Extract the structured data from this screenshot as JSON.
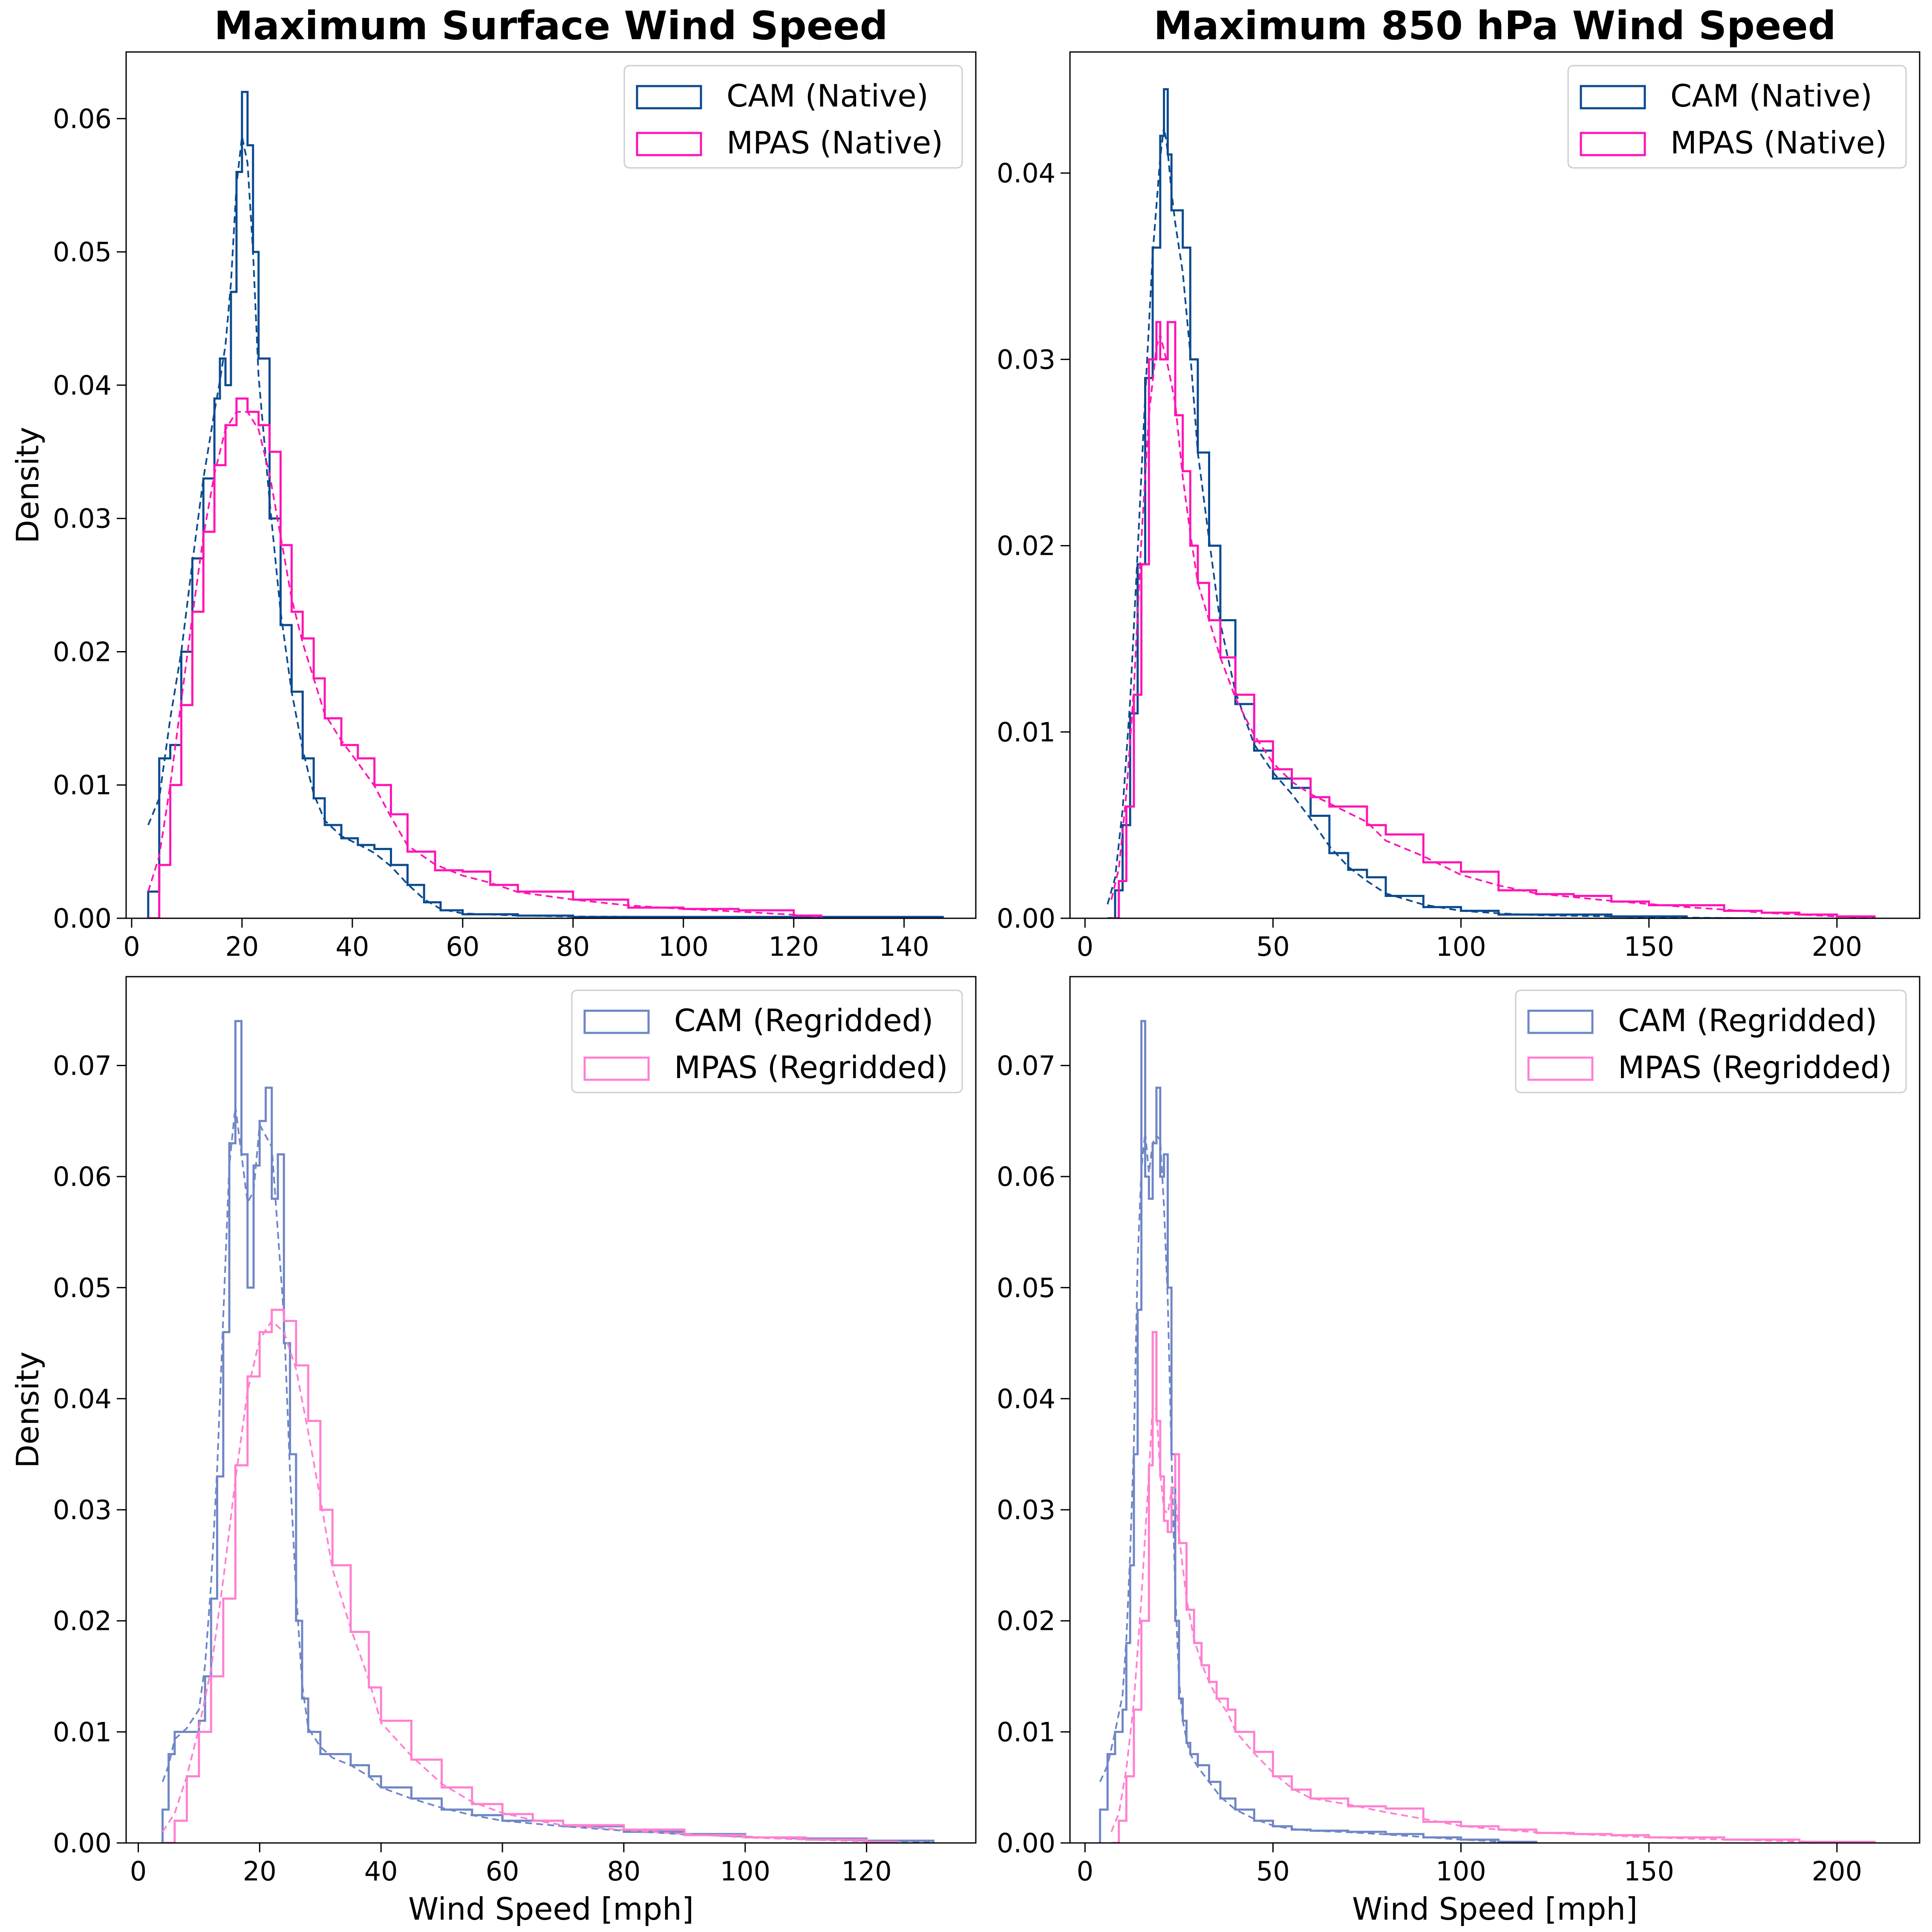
{
  "figure": {
    "panels": [
      {
        "title": "Maximum Surface Wind Speed",
        "ylabel": "Density",
        "xlabel": ""
      },
      {
        "title": "Maximum 850 hPa Wind Speed",
        "ylabel": "",
        "xlabel": ""
      },
      {
        "title": "",
        "ylabel": "Density",
        "xlabel": "Wind Speed [mph]"
      },
      {
        "title": "",
        "ylabel": "",
        "xlabel": "Wind Speed [mph]"
      }
    ]
  },
  "chart_data": [
    {
      "type": "area",
      "chart_kind": "step histogram with dashed KDE overlay",
      "title": "Maximum Surface Wind Speed",
      "xlabel": "",
      "ylabel": "Density",
      "xlim": [
        -1,
        153
      ],
      "ylim": [
        0,
        0.065
      ],
      "xticks": [
        0,
        20,
        40,
        60,
        80,
        100,
        120,
        140
      ],
      "yticks": [
        0.0,
        0.01,
        0.02,
        0.03,
        0.04,
        0.05,
        0.06
      ],
      "ytick_labels": [
        "0.00",
        "0.01",
        "0.02",
        "0.03",
        "0.04",
        "0.05",
        "0.06"
      ],
      "legend": "top-right",
      "series": [
        {
          "name": "CAM (Native)",
          "color": "#0b4a8f",
          "x": [
            3,
            5,
            7,
            9,
            11,
            13,
            15,
            16,
            17,
            18,
            19,
            20,
            21,
            22,
            23,
            25,
            27,
            29,
            31,
            33,
            35,
            38,
            41,
            44,
            47,
            50,
            53,
            56,
            60,
            70,
            80,
            100,
            120,
            147
          ],
          "y": [
            0.002,
            0.012,
            0.013,
            0.02,
            0.027,
            0.033,
            0.039,
            0.042,
            0.04,
            0.047,
            0.056,
            0.062,
            0.058,
            0.05,
            0.042,
            0.03,
            0.022,
            0.017,
            0.012,
            0.009,
            0.007,
            0.006,
            0.0055,
            0.0052,
            0.004,
            0.0025,
            0.0012,
            0.0006,
            0.0003,
            0.0002,
            0.0001,
            0.0001,
            0.0001,
            0.0
          ]
        },
        {
          "name": "MPAS (Native)",
          "color": "#ff14b4",
          "x": [
            3,
            5,
            7,
            9,
            11,
            13,
            15,
            17,
            19,
            21,
            23,
            25,
            27,
            29,
            31,
            33,
            35,
            38,
            41,
            44,
            47,
            50,
            55,
            60,
            65,
            70,
            80,
            90,
            100,
            110,
            120,
            125
          ],
          "y": [
            0.0,
            0.004,
            0.01,
            0.016,
            0.023,
            0.029,
            0.034,
            0.037,
            0.039,
            0.038,
            0.037,
            0.035,
            0.028,
            0.023,
            0.021,
            0.018,
            0.015,
            0.013,
            0.012,
            0.01,
            0.0078,
            0.005,
            0.0036,
            0.0035,
            0.0025,
            0.002,
            0.0014,
            0.0008,
            0.0007,
            0.0006,
            0.0002,
            0.0
          ]
        }
      ]
    },
    {
      "type": "area",
      "chart_kind": "step histogram with dashed KDE overlay",
      "title": "Maximum 850 hPa Wind Speed",
      "xlabel": "",
      "ylabel": "",
      "xlim": [
        -4,
        222
      ],
      "ylim": [
        0,
        0.0465
      ],
      "xticks": [
        0,
        50,
        100,
        150,
        200
      ],
      "yticks": [
        0.0,
        0.01,
        0.02,
        0.03,
        0.04
      ],
      "ytick_labels": [
        "0.00",
        "0.01",
        "0.02",
        "0.03",
        "0.04"
      ],
      "legend": "top-right",
      "series": [
        {
          "name": "CAM (Native)",
          "color": "#0b4a8f",
          "x": [
            6,
            8,
            10,
            12,
            14,
            16,
            18,
            20,
            21,
            22,
            23,
            24,
            26,
            28,
            30,
            33,
            36,
            40,
            45,
            50,
            55,
            60,
            65,
            70,
            75,
            80,
            90,
            100,
            110,
            120,
            140,
            160,
            180
          ],
          "y": [
            0.0,
            0.0015,
            0.005,
            0.011,
            0.019,
            0.029,
            0.036,
            0.042,
            0.0445,
            0.041,
            0.038,
            0.038,
            0.036,
            0.03,
            0.025,
            0.02,
            0.016,
            0.0115,
            0.009,
            0.0075,
            0.007,
            0.0055,
            0.0035,
            0.0026,
            0.0022,
            0.0012,
            0.0006,
            0.0004,
            0.0002,
            0.0002,
            0.0001,
            0.0,
            0.0
          ]
        },
        {
          "name": "MPAS (Native)",
          "color": "#ff14b4",
          "x": [
            7,
            9,
            11,
            13,
            15,
            17,
            19,
            20,
            22,
            24,
            26,
            28,
            30,
            33,
            36,
            40,
            45,
            50,
            55,
            60,
            65,
            70,
            75,
            80,
            90,
            100,
            110,
            120,
            130,
            140,
            150,
            160,
            170,
            180,
            190,
            200,
            210
          ],
          "y": [
            0.0,
            0.002,
            0.006,
            0.012,
            0.019,
            0.03,
            0.032,
            0.03,
            0.032,
            0.027,
            0.024,
            0.02,
            0.018,
            0.016,
            0.014,
            0.012,
            0.0095,
            0.008,
            0.0075,
            0.0065,
            0.006,
            0.006,
            0.005,
            0.0045,
            0.003,
            0.0025,
            0.0015,
            0.0013,
            0.0012,
            0.0009,
            0.0007,
            0.0007,
            0.0004,
            0.0003,
            0.0002,
            0.0001,
            0.0
          ]
        }
      ]
    },
    {
      "type": "area",
      "chart_kind": "step histogram with dashed KDE overlay",
      "title": "",
      "xlabel": "Wind Speed [mph]",
      "ylabel": "Density",
      "xlim": [
        -2,
        138
      ],
      "ylim": [
        0,
        0.078
      ],
      "xticks": [
        0,
        20,
        40,
        60,
        80,
        100,
        120
      ],
      "yticks": [
        0.0,
        0.01,
        0.02,
        0.03,
        0.04,
        0.05,
        0.06,
        0.07
      ],
      "ytick_labels": [
        "0.00",
        "0.01",
        "0.02",
        "0.03",
        "0.04",
        "0.05",
        "0.06",
        "0.07"
      ],
      "legend": "top-right",
      "series": [
        {
          "name": "CAM (Regridded)",
          "color": "#6f86c6",
          "x": [
            4,
            5,
            6,
            8,
            10,
            11,
            12,
            13,
            14,
            15,
            16,
            17,
            18,
            19,
            20,
            21,
            22,
            23,
            24,
            25,
            26,
            27,
            28,
            30,
            32,
            35,
            38,
            40,
            45,
            50,
            55,
            60,
            70,
            80,
            90,
            100,
            110,
            120,
            131
          ],
          "y": [
            0.003,
            0.008,
            0.01,
            0.01,
            0.011,
            0.015,
            0.022,
            0.033,
            0.046,
            0.063,
            0.074,
            0.062,
            0.05,
            0.061,
            0.065,
            0.068,
            0.058,
            0.062,
            0.045,
            0.035,
            0.02,
            0.013,
            0.01,
            0.008,
            0.008,
            0.007,
            0.006,
            0.005,
            0.004,
            0.003,
            0.0025,
            0.002,
            0.0015,
            0.001,
            0.0008,
            0.0005,
            0.0004,
            0.0002,
            0.0
          ]
        },
        {
          "name": "MPAS (Regridded)",
          "color": "#ff80d0",
          "x": [
            4,
            6,
            8,
            10,
            12,
            14,
            16,
            18,
            20,
            22,
            24,
            26,
            28,
            30,
            32,
            35,
            38,
            40,
            45,
            50,
            55,
            60,
            65,
            70,
            80,
            90,
            100,
            110,
            120,
            125
          ],
          "y": [
            0.0,
            0.002,
            0.006,
            0.01,
            0.015,
            0.022,
            0.034,
            0.042,
            0.046,
            0.048,
            0.047,
            0.043,
            0.038,
            0.03,
            0.025,
            0.019,
            0.014,
            0.011,
            0.0075,
            0.005,
            0.0035,
            0.0026,
            0.002,
            0.0016,
            0.0012,
            0.0007,
            0.0005,
            0.0003,
            0.0001,
            0.0
          ]
        }
      ]
    },
    {
      "type": "area",
      "chart_kind": "step histogram with dashed KDE overlay",
      "title": "",
      "xlabel": "Wind Speed [mph]",
      "ylabel": "",
      "xlim": [
        -4,
        222
      ],
      "ylim": [
        0,
        0.078
      ],
      "xticks": [
        0,
        50,
        100,
        150,
        200
      ],
      "yticks": [
        0.0,
        0.01,
        0.02,
        0.03,
        0.04,
        0.05,
        0.06,
        0.07
      ],
      "ytick_labels": [
        "0.00",
        "0.01",
        "0.02",
        "0.03",
        "0.04",
        "0.05",
        "0.06",
        "0.07"
      ],
      "legend": "top-right",
      "series": [
        {
          "name": "CAM (Regridded)",
          "color": "#6f86c6",
          "x": [
            4,
            6,
            8,
            10,
            11,
            12,
            13,
            14,
            15,
            16,
            17,
            18,
            19,
            20,
            21,
            22,
            23,
            24,
            25,
            26,
            27,
            28,
            30,
            33,
            36,
            40,
            45,
            50,
            55,
            60,
            70,
            80,
            90,
            100,
            110,
            120
          ],
          "y": [
            0.003,
            0.008,
            0.01,
            0.012,
            0.018,
            0.025,
            0.035,
            0.048,
            0.074,
            0.06,
            0.058,
            0.063,
            0.068,
            0.06,
            0.062,
            0.05,
            0.035,
            0.02,
            0.013,
            0.011,
            0.009,
            0.008,
            0.007,
            0.0055,
            0.004,
            0.003,
            0.002,
            0.0015,
            0.0012,
            0.0011,
            0.001,
            0.0008,
            0.0005,
            0.0003,
            0.0001,
            0.0
          ]
        },
        {
          "name": "MPAS (Regridded)",
          "color": "#ff80d0",
          "x": [
            7,
            9,
            11,
            13,
            15,
            17,
            18,
            19,
            20,
            21,
            22,
            23,
            24,
            25,
            27,
            29,
            31,
            33,
            35,
            38,
            40,
            45,
            50,
            55,
            60,
            70,
            80,
            90,
            100,
            110,
            120,
            130,
            140,
            150,
            170,
            190,
            210
          ],
          "y": [
            0.0,
            0.002,
            0.006,
            0.012,
            0.02,
            0.034,
            0.046,
            0.038,
            0.033,
            0.029,
            0.028,
            0.032,
            0.035,
            0.027,
            0.021,
            0.018,
            0.016,
            0.0145,
            0.013,
            0.012,
            0.01,
            0.0082,
            0.006,
            0.0048,
            0.004,
            0.0033,
            0.0031,
            0.0019,
            0.0015,
            0.0012,
            0.0009,
            0.0008,
            0.0007,
            0.0005,
            0.0003,
            0.0001,
            0.0
          ]
        }
      ]
    }
  ]
}
